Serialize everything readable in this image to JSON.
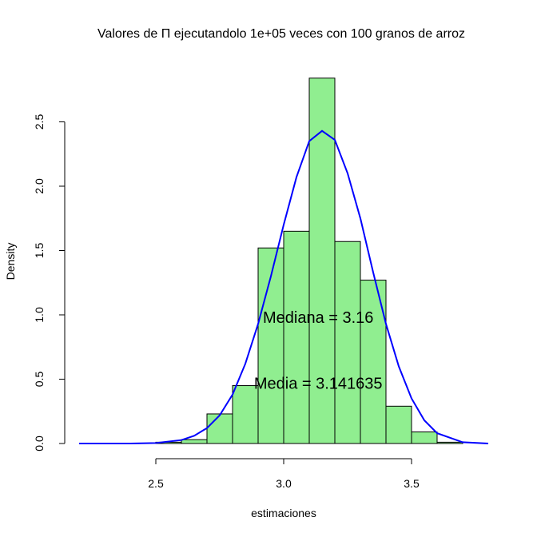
{
  "chart_data": {
    "type": "histogram",
    "title": "Valores de  Π ejecutandolo  1e+05 veces con  100 granos de arroz",
    "xlabel": "estimaciones",
    "ylabel": "Density",
    "xlim": [
      2.2,
      3.8
    ],
    "ylim": [
      0,
      2.85
    ],
    "x_ticks": [
      "2.5",
      "3.0",
      "3.5"
    ],
    "y_ticks": [
      "0.0",
      "0.5",
      "1.0",
      "1.5",
      "2.0",
      "2.5"
    ],
    "bins": [
      {
        "from": 2.5,
        "to": 2.6,
        "density": 0.01
      },
      {
        "from": 2.6,
        "to": 2.7,
        "density": 0.03
      },
      {
        "from": 2.7,
        "to": 2.8,
        "density": 0.23
      },
      {
        "from": 2.8,
        "to": 2.9,
        "density": 0.45
      },
      {
        "from": 2.9,
        "to": 3.0,
        "density": 1.52
      },
      {
        "from": 3.0,
        "to": 3.1,
        "density": 1.65
      },
      {
        "from": 3.1,
        "to": 3.2,
        "density": 2.84
      },
      {
        "from": 3.2,
        "to": 3.3,
        "density": 1.57
      },
      {
        "from": 3.3,
        "to": 3.4,
        "density": 1.27
      },
      {
        "from": 3.4,
        "to": 3.5,
        "density": 0.29
      },
      {
        "from": 3.5,
        "to": 3.6,
        "density": 0.09
      },
      {
        "from": 3.6,
        "to": 3.7,
        "density": 0.01
      }
    ],
    "density_curve": {
      "color": "#0000ff",
      "x": [
        2.2,
        2.4,
        2.5,
        2.6,
        2.65,
        2.7,
        2.75,
        2.8,
        2.85,
        2.9,
        2.95,
        3.0,
        3.05,
        3.1,
        3.15,
        3.2,
        3.25,
        3.3,
        3.35,
        3.4,
        3.45,
        3.5,
        3.55,
        3.6,
        3.7,
        3.8
      ],
      "y": [
        0.0,
        0.0,
        0.004,
        0.027,
        0.06,
        0.12,
        0.22,
        0.38,
        0.62,
        0.93,
        1.3,
        1.7,
        2.07,
        2.35,
        2.43,
        2.36,
        2.1,
        1.75,
        1.33,
        0.93,
        0.6,
        0.35,
        0.18,
        0.08,
        0.01,
        0.0
      ]
    },
    "bar_fill": "#90ee90",
    "bar_stroke": "#000000",
    "annotations": [
      {
        "text": "Mediana =  3.16",
        "x": 3.135,
        "y": 0.98
      },
      {
        "text": "Media =  3.141635",
        "x": 3.135,
        "y": 0.47
      }
    ]
  }
}
